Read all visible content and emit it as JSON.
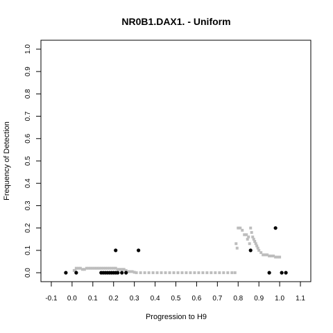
{
  "chart_data": {
    "type": "scatter",
    "title": "NR0B1.DAX1. - Uniform",
    "xlabel": "Progression to H9",
    "ylabel": "Frequency of Detection",
    "xlim": [
      -0.15,
      1.15
    ],
    "ylim": [
      -0.04,
      1.04
    ],
    "xticks": [
      "-0.1",
      "0.0",
      "0.1",
      "0.2",
      "0.3",
      "0.4",
      "0.5",
      "0.6",
      "0.7",
      "0.8",
      "0.9",
      "1.0",
      "1.1"
    ],
    "yticks": [
      "0.0",
      "0.1",
      "0.2",
      "0.3",
      "0.4",
      "0.5",
      "0.6",
      "0.7",
      "0.8",
      "0.9",
      "1.0"
    ],
    "grid": false,
    "series": [
      {
        "color": "#bdbdbd",
        "marker": "small-square",
        "points": [
          [
            0.01,
            0.01
          ],
          [
            0.015,
            0.01
          ],
          [
            0.02,
            0.02
          ],
          [
            0.03,
            0.02
          ],
          [
            0.04,
            0.02
          ],
          [
            0.05,
            0.015
          ],
          [
            0.06,
            0.015
          ],
          [
            0.07,
            0.02
          ],
          [
            0.08,
            0.02
          ],
          [
            0.09,
            0.02
          ],
          [
            0.1,
            0.02
          ],
          [
            0.11,
            0.02
          ],
          [
            0.12,
            0.02
          ],
          [
            0.13,
            0.02
          ],
          [
            0.14,
            0.02
          ],
          [
            0.15,
            0.02
          ],
          [
            0.16,
            0.02
          ],
          [
            0.17,
            0.02
          ],
          [
            0.18,
            0.02
          ],
          [
            0.19,
            0.02
          ],
          [
            0.2,
            0.02
          ],
          [
            0.21,
            0.02
          ],
          [
            0.22,
            0.015
          ],
          [
            0.23,
            0.015
          ],
          [
            0.24,
            0.015
          ],
          [
            0.25,
            0.015
          ],
          [
            0.26,
            0.01
          ],
          [
            0.27,
            0.005
          ],
          [
            0.28,
            0.005
          ],
          [
            0.29,
            0.005
          ],
          [
            0.3,
            0.002
          ],
          [
            0.31,
            0.0
          ],
          [
            0.33,
            0.0
          ],
          [
            0.35,
            0.0
          ],
          [
            0.37,
            0.0
          ],
          [
            0.39,
            0.0
          ],
          [
            0.41,
            0.0
          ],
          [
            0.43,
            0.0
          ],
          [
            0.45,
            0.0
          ],
          [
            0.47,
            0.0
          ],
          [
            0.49,
            0.0
          ],
          [
            0.51,
            0.0
          ],
          [
            0.53,
            0.0
          ],
          [
            0.55,
            0.0
          ],
          [
            0.57,
            0.0
          ],
          [
            0.59,
            0.0
          ],
          [
            0.61,
            0.0
          ],
          [
            0.63,
            0.0
          ],
          [
            0.65,
            0.0
          ],
          [
            0.67,
            0.0
          ],
          [
            0.69,
            0.0
          ],
          [
            0.71,
            0.0
          ],
          [
            0.73,
            0.0
          ],
          [
            0.75,
            0.0
          ],
          [
            0.77,
            0.0
          ],
          [
            0.785,
            0.0
          ],
          [
            0.79,
            0.13
          ],
          [
            0.795,
            0.11
          ],
          [
            0.8,
            0.2
          ],
          [
            0.81,
            0.2
          ],
          [
            0.82,
            0.19
          ],
          [
            0.83,
            0.17
          ],
          [
            0.84,
            0.17
          ],
          [
            0.845,
            0.15
          ],
          [
            0.85,
            0.16
          ],
          [
            0.855,
            0.13
          ],
          [
            0.86,
            0.2
          ],
          [
            0.865,
            0.18
          ],
          [
            0.87,
            0.16
          ],
          [
            0.875,
            0.15
          ],
          [
            0.88,
            0.14
          ],
          [
            0.885,
            0.13
          ],
          [
            0.89,
            0.12
          ],
          [
            0.895,
            0.11
          ],
          [
            0.9,
            0.1
          ],
          [
            0.91,
            0.09
          ],
          [
            0.92,
            0.08
          ],
          [
            0.93,
            0.08
          ],
          [
            0.94,
            0.08
          ],
          [
            0.95,
            0.075
          ],
          [
            0.96,
            0.075
          ],
          [
            0.97,
            0.075
          ],
          [
            0.98,
            0.07
          ],
          [
            0.99,
            0.07
          ],
          [
            1.0,
            0.07
          ]
        ]
      },
      {
        "color": "#000000",
        "marker": "dot",
        "points": [
          [
            -0.03,
            0.0
          ],
          [
            0.02,
            0.0
          ],
          [
            0.14,
            0.0
          ],
          [
            0.15,
            0.0
          ],
          [
            0.16,
            0.0
          ],
          [
            0.17,
            0.0
          ],
          [
            0.18,
            0.0
          ],
          [
            0.19,
            0.0
          ],
          [
            0.2,
            0.0
          ],
          [
            0.21,
            0.0
          ],
          [
            0.22,
            0.0
          ],
          [
            0.24,
            0.0
          ],
          [
            0.26,
            0.0
          ],
          [
            0.21,
            0.1
          ],
          [
            0.32,
            0.1
          ],
          [
            0.86,
            0.1
          ],
          [
            0.95,
            0.0
          ],
          [
            0.98,
            0.2
          ],
          [
            1.01,
            0.0
          ],
          [
            1.03,
            0.0
          ]
        ]
      }
    ]
  }
}
